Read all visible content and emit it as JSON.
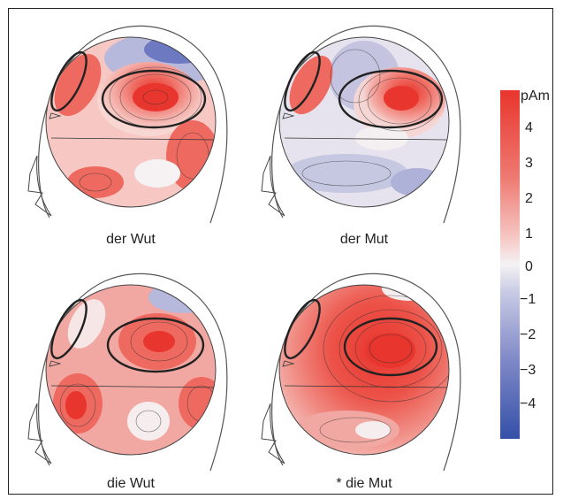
{
  "figure": {
    "panels": [
      {
        "label": "der Wut"
      },
      {
        "label": "der Mut"
      },
      {
        "label": "die Wut"
      },
      {
        "label": "* die Mut"
      }
    ],
    "colorbar": {
      "unit": "pAm",
      "ticks": [
        "4",
        "3",
        "2",
        "1",
        "0",
        "−1",
        "−2",
        "−3",
        "−4"
      ],
      "range": [
        -5,
        5
      ],
      "positive_color": "#e8352d",
      "negative_color": "#3550a8",
      "zero_color": "#f4f2f4"
    }
  }
}
